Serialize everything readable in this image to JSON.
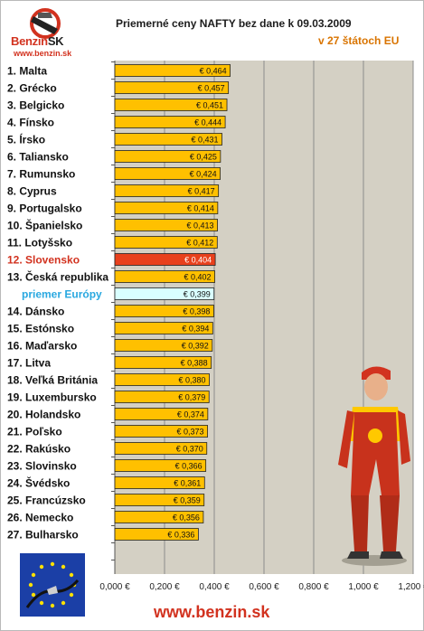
{
  "header": {
    "title": "Priemerné ceny NAFTY bez dane k 09.03.2009",
    "subtitle": "v 27 štátoch EU"
  },
  "logo": {
    "brand_main": "Benzin",
    "brand_suffix": "SK",
    "url": "www.benzin.sk"
  },
  "footer": {
    "url": "www.benzin.sk"
  },
  "colors": {
    "bar": "#ffc000",
    "bar_highlight": "#e8401c",
    "bar_average": "#d9ffff",
    "label": "#111111",
    "label_highlight": "#d2321f",
    "label_average": "#29a8e0",
    "plot_background": "#d4d0c4"
  },
  "chart_data": {
    "type": "bar",
    "orientation": "horizontal",
    "xlim": [
      0,
      1.2
    ],
    "grid": "vertical",
    "xtick_labels": [
      "0,000 €",
      "0,200 €",
      "0,400 €",
      "0,600 €",
      "0,800 €",
      "1,000 €",
      "1,200 €"
    ],
    "categories": [
      "1. Malta",
      "2. Grécko",
      "3. Belgicko",
      "4. Fínsko",
      "5. Írsko",
      "6. Taliansko",
      "7. Rumunsko",
      "8. Cyprus",
      "9. Portugalsko",
      "10. Španielsko",
      "11. Lotyšsko",
      "12. Slovensko",
      "13. Česká republika",
      "priemer Európy",
      "14. Dánsko",
      "15. Estónsko",
      "16. Maďarsko",
      "17. Litva",
      "18. Veľká Británia",
      "19. Luxembursko",
      "20. Holandsko",
      "21. Poľsko",
      "22. Rakúsko",
      "23. Slovinsko",
      "24. Švédsko",
      "25. Francúzsko",
      "26. Nemecko",
      "27. Bulharsko"
    ],
    "values": [
      0.464,
      0.457,
      0.451,
      0.444,
      0.431,
      0.425,
      0.424,
      0.417,
      0.414,
      0.413,
      0.412,
      0.404,
      0.402,
      0.399,
      0.398,
      0.394,
      0.392,
      0.388,
      0.38,
      0.379,
      0.374,
      0.373,
      0.37,
      0.366,
      0.361,
      0.359,
      0.356,
      0.336
    ],
    "value_labels": [
      "€ 0,464",
      "€ 0,457",
      "€ 0,451",
      "€ 0,444",
      "€ 0,431",
      "€ 0,425",
      "€ 0,424",
      "€ 0,417",
      "€ 0,414",
      "€ 0,413",
      "€ 0,412",
      "€ 0,404",
      "€ 0,402",
      "€ 0,399",
      "€ 0,398",
      "€ 0,394",
      "€ 0,392",
      "€ 0,388",
      "€ 0,380",
      "€ 0,379",
      "€ 0,374",
      "€ 0,373",
      "€ 0,370",
      "€ 0,366",
      "€ 0,361",
      "€ 0,359",
      "€ 0,356",
      "€ 0,336"
    ],
    "highlight": "12. Slovensko",
    "average": "priemer Európy"
  }
}
